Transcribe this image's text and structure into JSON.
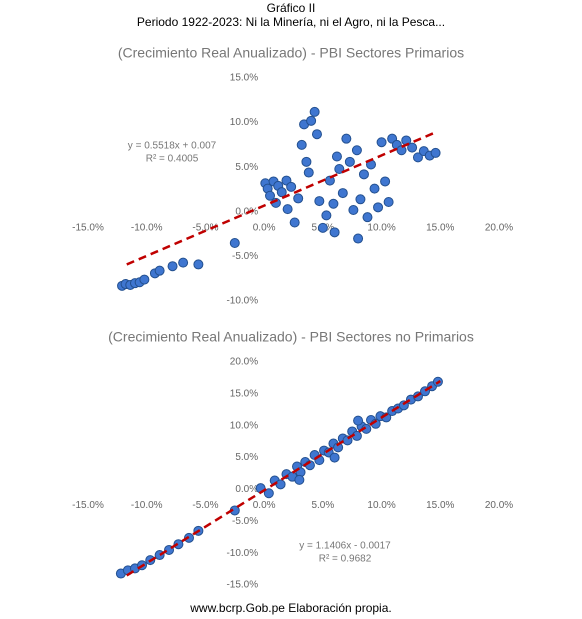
{
  "header": {
    "title": "Gráfico II",
    "subtitle": "Periodo 1922-2023: Ni la Minería, ni el Agro, ni la Pesca..."
  },
  "footer": "www.bcrp.Gob.pe Elaboración propia.",
  "chart_data": [
    {
      "type": "scatter",
      "title": "(Crecimiento Real Anualizado) - PBI Sectores Primarios",
      "color": "#3f76d0",
      "x": [
        -12.1,
        -11.8,
        -11.4,
        -11,
        -10.6,
        -10.2,
        -9.3,
        -8.9,
        -7.8,
        -6.9,
        -5.6,
        -2.5,
        0.1,
        0.3,
        0.5,
        0.8,
        1.2,
        1.5,
        1.9,
        2.3,
        2.6,
        2.9,
        3.2,
        3.4,
        3.6,
        3.8,
        4.0,
        4.3,
        4.5,
        4.7,
        5.0,
        5.3,
        5.6,
        5.9,
        6.2,
        6.4,
        6.7,
        7.0,
        7.3,
        7.6,
        7.9,
        8.2,
        8.5,
        8.8,
        9.1,
        9.4,
        9.7,
        10.0,
        10.3,
        10.6,
        10.9,
        11.3,
        11.7,
        12.1,
        12.6,
        13.1,
        13.6,
        14.1,
        14.6,
        2.0,
        6.0,
        8.0,
        1.0
      ],
      "values": [
        -8.3,
        -8.1,
        -8.2,
        -8,
        -7.9,
        -7.6,
        -6.9,
        -6.6,
        -6.1,
        -5.7,
        -5.9,
        -3.5,
        3.2,
        2.6,
        1.8,
        3.4,
        2.9,
        2.2,
        3.5,
        2.8,
        -1.2,
        1.5,
        7.5,
        9.8,
        5.6,
        4.4,
        10.2,
        11.2,
        8.7,
        1.2,
        -1.8,
        -0.4,
        3.5,
        0.9,
        6.2,
        4.8,
        2.1,
        8.2,
        5.6,
        0.2,
        6.9,
        1.4,
        4.2,
        -0.6,
        5.3,
        2.6,
        0.5,
        7.8,
        3.4,
        1.1,
        8.2,
        7.5,
        6.9,
        8.0,
        7.2,
        6.1,
        6.8,
        6.3,
        6.6,
        0.3,
        -2.3,
        -3.0,
        1.0
      ],
      "trendline": {
        "x": [
          -11.7,
          14.4
        ],
        "y": [
          -5.9,
          8.8
        ],
        "color": "#c00000",
        "equation": "y = 0.5518x + 0.007",
        "r2": "R² = 0.4005"
      },
      "xlim": [
        -15,
        20
      ],
      "ylim": [
        -10,
        15
      ],
      "xticks": [
        {
          "value": -15,
          "label": "-15.0%"
        },
        {
          "value": -10,
          "label": "-10.0%"
        },
        {
          "value": -5,
          "label": "-5.0%"
        },
        {
          "value": 0,
          "label": "0.0%"
        },
        {
          "value": 5,
          "label": "5.0%"
        },
        {
          "value": 10,
          "label": "10.0%"
        },
        {
          "value": 15,
          "label": "15.0%"
        },
        {
          "value": 20,
          "label": "20.0%"
        }
      ],
      "yticks": [
        {
          "value": -10,
          "label": "-10.0%"
        },
        {
          "value": -5,
          "label": "-5.0%"
        },
        {
          "value": 0,
          "label": "0.0%"
        },
        {
          "value": 5,
          "label": "5.0%"
        },
        {
          "value": 10,
          "label": "10.0%"
        },
        {
          "value": 15,
          "label": "15.0%"
        }
      ]
    },
    {
      "type": "scatter",
      "title": "(Crecimiento Real Anualizado) - PBI Sectores no Primarios",
      "color": "#3f76d0",
      "x": [
        -12.2,
        -11.6,
        -11,
        -10.4,
        -9.7,
        -8.9,
        -8.1,
        -7.3,
        -6.4,
        -5.6,
        -2.5,
        -0.3,
        0.4,
        0.9,
        1.4,
        1.9,
        2.4,
        2.8,
        3.1,
        3.5,
        3.9,
        4.3,
        4.7,
        5.1,
        5.5,
        5.9,
        6.3,
        6.7,
        7.1,
        7.5,
        7.9,
        8.3,
        8.7,
        9.1,
        9.5,
        9.9,
        10.4,
        10.9,
        11.4,
        11.9,
        12.5,
        13.1,
        13.7,
        14.3,
        14.8,
        3.0,
        6.0,
        8.0
      ],
      "values": [
        -13.2,
        -12.7,
        -12.4,
        -11.9,
        -11.1,
        -10.3,
        -9.5,
        -8.6,
        -7.6,
        -6.5,
        -3.3,
        0.2,
        -0.6,
        1.4,
        0.8,
        2.4,
        2.0,
        3.6,
        2.7,
        4.3,
        3.8,
        5.4,
        4.6,
        6.1,
        5.8,
        7.2,
        6.6,
        8.0,
        7.7,
        9.1,
        8.4,
        9.9,
        9.5,
        10.9,
        10.3,
        11.5,
        11.3,
        12.3,
        12.7,
        13.2,
        14.1,
        14.6,
        15.4,
        16.2,
        16.9,
        1.5,
        5.0,
        10.8
      ],
      "trendline": {
        "x": [
          -11.7,
          15.0
        ],
        "y": [
          -13.5,
          17.0
        ],
        "color": "#c00000",
        "equation": "y = 1.1406x - 0.0017",
        "r2": "R² = 0.9682"
      },
      "xlim": [
        -15,
        20
      ],
      "ylim": [
        -15,
        20
      ],
      "xticks": [
        {
          "value": -15,
          "label": "-15.0%"
        },
        {
          "value": -10,
          "label": "-10.0%"
        },
        {
          "value": -5,
          "label": "-5.0%"
        },
        {
          "value": 0,
          "label": "0.0%"
        },
        {
          "value": 5,
          "label": "5.0%"
        },
        {
          "value": 10,
          "label": "10.0%"
        },
        {
          "value": 15,
          "label": "15.0%"
        },
        {
          "value": 20,
          "label": "20.0%"
        }
      ],
      "yticks": [
        {
          "value": -15,
          "label": "-15.0%"
        },
        {
          "value": -10,
          "label": "-10.0%"
        },
        {
          "value": -5,
          "label": "-5.0%"
        },
        {
          "value": 0,
          "label": "0.0%"
        },
        {
          "value": 5,
          "label": "5.0%"
        },
        {
          "value": 10,
          "label": "10.0%"
        },
        {
          "value": 15,
          "label": "15.0%"
        },
        {
          "value": 20,
          "label": "20.0%"
        }
      ]
    }
  ]
}
